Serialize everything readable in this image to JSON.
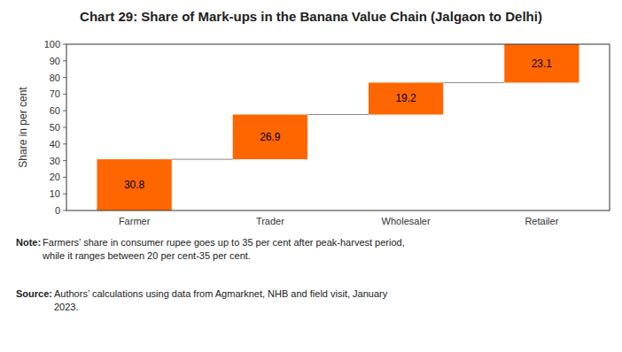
{
  "chart_data": {
    "type": "waterfall",
    "title": "Chart 29: Share of Mark-ups in the Banana Value Chain (Jalgaon to Delhi)",
    "categories": [
      "Farmer",
      "Trader",
      "Wholesaler",
      "Retailer"
    ],
    "values": [
      30.8,
      26.9,
      19.2,
      23.1
    ],
    "color": "#FF6600",
    "y_label": "Share in per cent",
    "ylim": [
      0,
      100
    ],
    "yticks": [
      0,
      10,
      20,
      30,
      40,
      50,
      60,
      70,
      80,
      90,
      100
    ],
    "grid": false,
    "data_labels": true,
    "annotations": [
      {
        "label": "Note:",
        "text": " Farmers’ share in consumer rupee goes up to 35 per cent after peak-harvest period,\nwhile it ranges between 20 per cent-35 per cent."
      },
      {
        "label": "Source:",
        "text": " Authors’ calculations using data from Agmarknet, NHB and field visit, January\n2023."
      }
    ]
  }
}
